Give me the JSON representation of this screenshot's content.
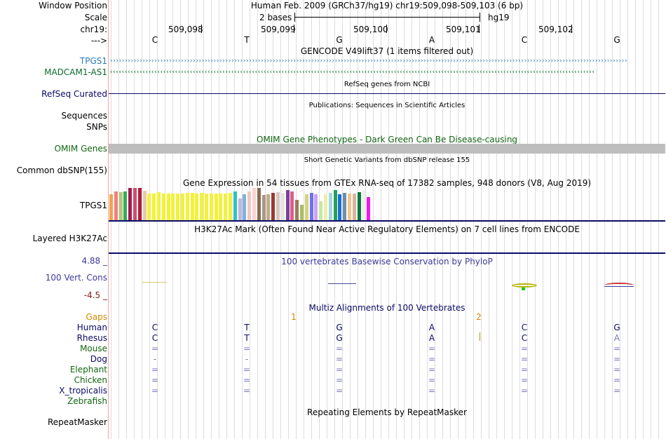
{
  "header": {
    "window_position_label": "Window Position",
    "scale_label": "Scale",
    "chrom_label": "chr19:",
    "strand_label": "--->",
    "assembly_position": "Human Feb. 2009 (GRCh37/hg19)    chr19:509,098-509,103 (6 bp)",
    "scale_text": "2 bases",
    "scale_db": "hg19",
    "ticks": [
      "509,098",
      "509,099",
      "509,100",
      "509,101",
      "509,102"
    ],
    "bases": [
      "C",
      "T",
      "G",
      "A",
      "C",
      "G"
    ]
  },
  "tracks": {
    "gencode": {
      "title": "GENCODE V49lift37 (1 items filtered out)",
      "genes": [
        {
          "name": "TPGS1",
          "strand": "+",
          "color": "#2a7ab8"
        },
        {
          "name": "MADCAM1-AS1",
          "strand": "-",
          "color": "#0c6b2e"
        }
      ]
    },
    "refseq": {
      "label": "RefSeq Curated",
      "title": "RefSeq genes from NCBI"
    },
    "publications": {
      "label": "Sequences",
      "title": "Publications: Sequences in Scientific Articles"
    },
    "snps": {
      "label": "SNPs"
    },
    "omim": {
      "label": "OMIM Genes",
      "title": "OMIM Gene Phenotypes - Dark Green Can Be Disease-causing"
    },
    "dbsnp": {
      "label": "Common dbSNP(155)",
      "title": "Short Genetic Variants from dbSNP release 155"
    },
    "gtex": {
      "label": "TPGS1",
      "title": "Gene Expression in 54 tissues from GTEx RNA-seq of 17382 samples, 948 donors (V8, Aug 2019)",
      "tissue_expression": [
        0.8,
        0.9,
        0.88,
        0.9,
        1.0,
        1.0,
        1.0,
        0.92,
        0.82,
        0.82,
        0.88,
        0.82,
        0.82,
        0.82,
        0.82,
        0.82,
        0.84,
        0.84,
        0.82,
        0.84,
        0.82,
        0.82,
        0.82,
        0.82,
        0.82,
        0.84,
        0.9,
        0.68,
        0.8,
        0.9,
        1.0,
        1.0,
        0.78,
        0.8,
        0.84,
        0.88,
        0.84,
        0.94,
        0.9,
        0.64,
        0.48,
        0.8,
        0.84,
        0.8,
        0.58,
        0.8,
        0.84,
        0.94,
        0.8,
        0.84,
        0.82,
        0.82,
        0.86,
        0.94,
        0.72
      ],
      "tissue_colors": [
        "#f1a44e",
        "#f17f7f",
        "#b5c77a",
        "#36ab5a",
        "#9c1d4e",
        "#cf4e6b",
        "#b31c3c",
        "#e8c9ab",
        "#f2f23b",
        "#f2f23b",
        "#f2f23b",
        "#f2f23b",
        "#f2f23b",
        "#f2f23b",
        "#f2f23b",
        "#f2f23b",
        "#f2f23b",
        "#f2f23b",
        "#f2f23b",
        "#f2f23b",
        "#f2f23b",
        "#f2f23b",
        "#f2f23b",
        "#f2f23b",
        "#f2f23b",
        "#f2f23b",
        "#2cc4c4",
        "#bfb7e0",
        "#7fb2de",
        "#eec8c2",
        "#f7d4d1",
        "#8a6a52",
        "#a89886",
        "#c1ab8f",
        "#9a3a34",
        "#d7c6c0",
        "#e9e3e0",
        "#7c3f9b",
        "#d95e8e",
        "#9c7a5a",
        "#a9bf62",
        "#d4d47c",
        "#7070ef",
        "#c9a2f6",
        "#c4e99f",
        "#eeeeb0",
        "#a4d6e0",
        "#24a05c",
        "#1b6fd1",
        "#6f8fa8",
        "#f2c58f",
        "#d9b49a",
        "#0a7a3c",
        "#f0f0e8",
        "#f01aef"
      ]
    },
    "h3k27ac": {
      "label": "Layered H3K27Ac",
      "title": "H3K27Ac Mark (Often Found Near Active Regulatory Elements) on 7 cell lines from ENCODE"
    },
    "conservation": {
      "label": "100 Vert. Cons",
      "ymax": "4.88 _",
      "ymin": "-4.5 _",
      "title": "100 vertebrates Basewise Conservation by PhyloP",
      "multiz_title": "Multiz Alignments of 100 Vertebrates"
    },
    "alignment": {
      "gaps_label": "Gaps",
      "gap_numbers": [
        "1",
        "2"
      ],
      "species": [
        {
          "name": "Human",
          "color": "#0a0a66",
          "row": [
            "C",
            "T",
            "G",
            "A",
            "C",
            "G"
          ]
        },
        {
          "name": "Rhesus",
          "color": "#0a0a66",
          "row": [
            "C",
            "T",
            "G",
            "A",
            "C",
            "A"
          ]
        },
        {
          "name": "Mouse",
          "color": "#116611",
          "row": [
            "=",
            "=",
            "=",
            "=",
            "=",
            "="
          ]
        },
        {
          "name": "Dog",
          "color": "#0a0a66",
          "row": [
            "-",
            "-",
            "=",
            "=",
            "=",
            "="
          ]
        },
        {
          "name": "Elephant",
          "color": "#116611",
          "row": [
            "=",
            "=",
            "=",
            "=",
            "=",
            "="
          ]
        },
        {
          "name": "Chicken",
          "color": "#116611",
          "row": [
            "=",
            "=",
            "=",
            "=",
            "=",
            "="
          ]
        },
        {
          "name": "X_tropicalis",
          "color": "#0a0a66",
          "row": [
            "=",
            "=",
            "=",
            "=",
            "=",
            "="
          ]
        },
        {
          "name": "Zebrafish",
          "color": "#116611",
          "row": [
            "",
            "",
            "",
            "",
            "",
            ""
          ]
        }
      ]
    },
    "repeatmasker": {
      "label": "RepeatMasker",
      "title": "Repeating Elements by RepeatMasker"
    }
  },
  "colors": {
    "gene_blue": "#2a7ab8",
    "gene_green": "#0c6b2e",
    "refseq_navy": "#0a0a66",
    "omim_green": "#116611",
    "omim_bar": "#bebebe",
    "cons_blue": "#3a3a9a",
    "cons_min": "#8b1a1a",
    "gaps_orange": "#d08a00"
  }
}
